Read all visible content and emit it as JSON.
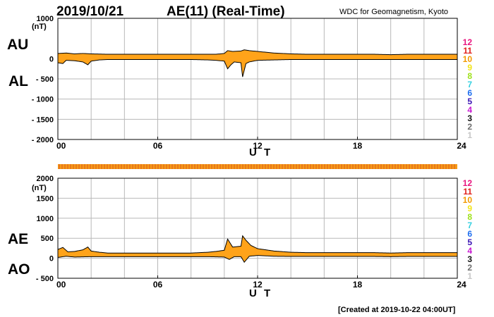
{
  "header": {
    "date": "2019/10/21",
    "title": "AE(11) (Real-Time)",
    "source": "WDC for Geomagnetism, Kyoto"
  },
  "footer": {
    "created": "[Created at 2019-10-22 04:00UT]"
  },
  "colors": {
    "fill": "#ffa31a",
    "outline": "#000000",
    "grid": "#b8b8b8",
    "coverage_main": "#f49b18",
    "coverage_stripe": "#e0541a"
  },
  "station_counts": [
    {
      "label": "12",
      "color": "#e8157f"
    },
    {
      "label": "11",
      "color": "#e0201c"
    },
    {
      "label": "10",
      "color": "#f29a00"
    },
    {
      "label": "9",
      "color": "#f2e51c"
    },
    {
      "label": "8",
      "color": "#9ee11c"
    },
    {
      "label": "7",
      "color": "#34d0e0"
    },
    {
      "label": "6",
      "color": "#1f6ff0"
    },
    {
      "label": "5",
      "color": "#3a14b4"
    },
    {
      "label": "4",
      "color": "#c817d1"
    },
    {
      "label": "3",
      "color": "#111111"
    },
    {
      "label": "2",
      "color": "#6e6e6e"
    },
    {
      "label": "1",
      "color": "#c8c8c8"
    }
  ],
  "chart_data": [
    {
      "type": "area",
      "panel": "AU/AL",
      "series_labels": {
        "upper": "AU",
        "lower": "AL"
      },
      "unit": "(nT)",
      "xlabel": "U T",
      "xlim": [
        0,
        24
      ],
      "ylim": [
        -2000,
        1000
      ],
      "yticks": [
        1000,
        0,
        -500,
        -1000,
        -1500,
        -2000
      ],
      "ytick_labels": [
        "1000",
        "0",
        "- 500",
        "- 1000",
        "- 1500",
        "- 2000"
      ],
      "xticks": [
        0,
        6,
        12,
        18,
        24
      ],
      "xtick_labels": [
        "00",
        "06",
        "12",
        "18",
        "24"
      ],
      "grid": true,
      "series": [
        {
          "name": "AU",
          "x": [
            0,
            0.5,
            1,
            1.5,
            2,
            3,
            4,
            5,
            6,
            7,
            8,
            9,
            9.5,
            10,
            10.2,
            10.5,
            11,
            11.2,
            11.5,
            12,
            13,
            14,
            15,
            16,
            17,
            18,
            19,
            20,
            21,
            22,
            23,
            24
          ],
          "values": [
            130,
            140,
            120,
            130,
            120,
            110,
            110,
            110,
            110,
            110,
            110,
            110,
            110,
            130,
            200,
            180,
            190,
            220,
            200,
            180,
            140,
            120,
            110,
            110,
            110,
            110,
            110,
            100,
            110,
            110,
            110,
            110
          ]
        },
        {
          "name": "AL",
          "x": [
            0,
            0.3,
            0.5,
            1,
            1.5,
            1.8,
            2,
            2.5,
            3,
            4,
            5,
            6,
            7,
            8,
            9,
            9.5,
            10,
            10.2,
            10.4,
            10.6,
            11,
            11.1,
            11.3,
            11.5,
            12,
            13,
            14,
            15,
            16,
            17,
            18,
            19,
            20,
            21,
            22,
            23,
            24
          ],
          "values": [
            -100,
            -120,
            -40,
            -50,
            -80,
            -150,
            -60,
            -30,
            -20,
            -20,
            -20,
            -20,
            -20,
            -20,
            -30,
            -40,
            -60,
            -250,
            -150,
            -80,
            -100,
            -450,
            -120,
            -80,
            -40,
            -30,
            -20,
            -20,
            -20,
            -20,
            -20,
            -20,
            -20,
            -20,
            -20,
            -20,
            -20
          ]
        }
      ]
    },
    {
      "type": "area",
      "panel": "AE/AO",
      "series_labels": {
        "upper": "AE",
        "lower": "AO"
      },
      "unit": "(nT)",
      "xlabel": "U T",
      "xlim": [
        0,
        24
      ],
      "ylim": [
        -500,
        2000
      ],
      "yticks": [
        2000,
        1500,
        1000,
        500,
        0,
        -500
      ],
      "ytick_labels": [
        "2000",
        "1500",
        "1000",
        "500",
        "0",
        "- 500"
      ],
      "xticks": [
        0,
        6,
        12,
        18,
        24
      ],
      "xtick_labels": [
        "00",
        "06",
        "12",
        "18",
        "24"
      ],
      "grid": true,
      "series": [
        {
          "name": "AE",
          "x": [
            0,
            0.3,
            0.6,
            1,
            1.5,
            1.8,
            2,
            2.5,
            3,
            4,
            5,
            6,
            7,
            8,
            9,
            9.5,
            10,
            10.2,
            10.5,
            11,
            11.1,
            11.3,
            11.6,
            12,
            13,
            14,
            15,
            16,
            17,
            18,
            19,
            20,
            21,
            22,
            23,
            24
          ],
          "values": [
            220,
            270,
            160,
            170,
            210,
            280,
            180,
            150,
            130,
            130,
            130,
            130,
            130,
            130,
            150,
            170,
            200,
            480,
            280,
            300,
            560,
            450,
            320,
            240,
            180,
            150,
            140,
            140,
            140,
            140,
            140,
            130,
            140,
            140,
            140,
            140
          ]
        },
        {
          "name": "AO",
          "x": [
            0,
            0.5,
            1,
            2,
            3,
            4,
            5,
            6,
            7,
            8,
            9,
            10,
            10.3,
            10.6,
            11,
            11.2,
            11.5,
            12,
            13,
            14,
            15,
            16,
            17,
            18,
            19,
            20,
            21,
            22,
            23,
            24
          ],
          "values": [
            20,
            50,
            30,
            40,
            40,
            40,
            40,
            40,
            40,
            40,
            40,
            30,
            -30,
            40,
            40,
            -100,
            50,
            70,
            50,
            45,
            45,
            45,
            45,
            45,
            45,
            40,
            45,
            45,
            45,
            45
          ]
        }
      ]
    }
  ]
}
